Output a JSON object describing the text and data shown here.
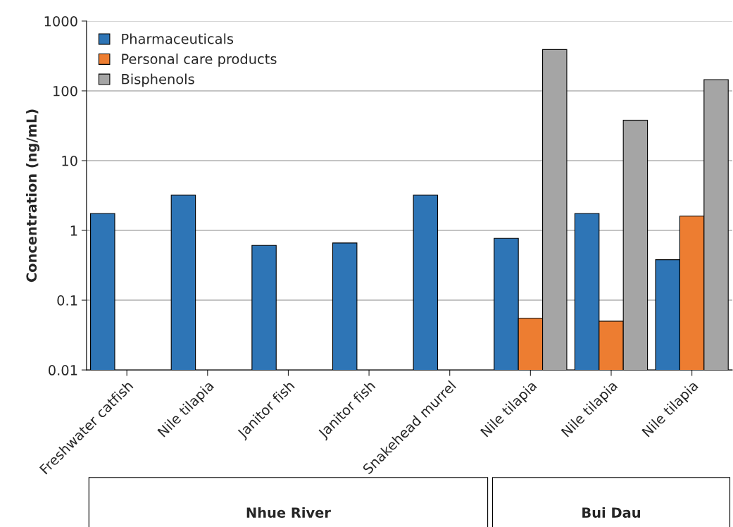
{
  "chart_data": {
    "type": "bar",
    "ylabel": "Concentration (ng/mL)",
    "categories": [
      "Freshwater catfish",
      "Nile tilapia",
      "Janitor fish",
      "Janitor fish",
      "Snakehead murrel",
      "Nile tilapia",
      "Nile tilapia",
      "Nile tilapia"
    ],
    "series": [
      {
        "name": "Pharmaceuticals",
        "color": "#2e75b6",
        "values": [
          1.75,
          3.2,
          0.61,
          0.66,
          3.2,
          0.77,
          1.75,
          0.38
        ]
      },
      {
        "name": "Personal care products",
        "color": "#ed7d31",
        "values": [
          null,
          null,
          null,
          null,
          null,
          0.055,
          0.05,
          1.6
        ]
      },
      {
        "name": "Bisphenols",
        "color": "#a5a5a5",
        "values": [
          null,
          null,
          null,
          null,
          null,
          390,
          38,
          145
        ]
      }
    ],
    "log": "y",
    "ylim": [
      0.01,
      1000
    ],
    "yticks": [
      0.01,
      0.1,
      1,
      10,
      100,
      1000
    ],
    "grid": "y",
    "legend": "top left",
    "annotations": [
      "Nhue River",
      "Bui Dau"
    ]
  }
}
